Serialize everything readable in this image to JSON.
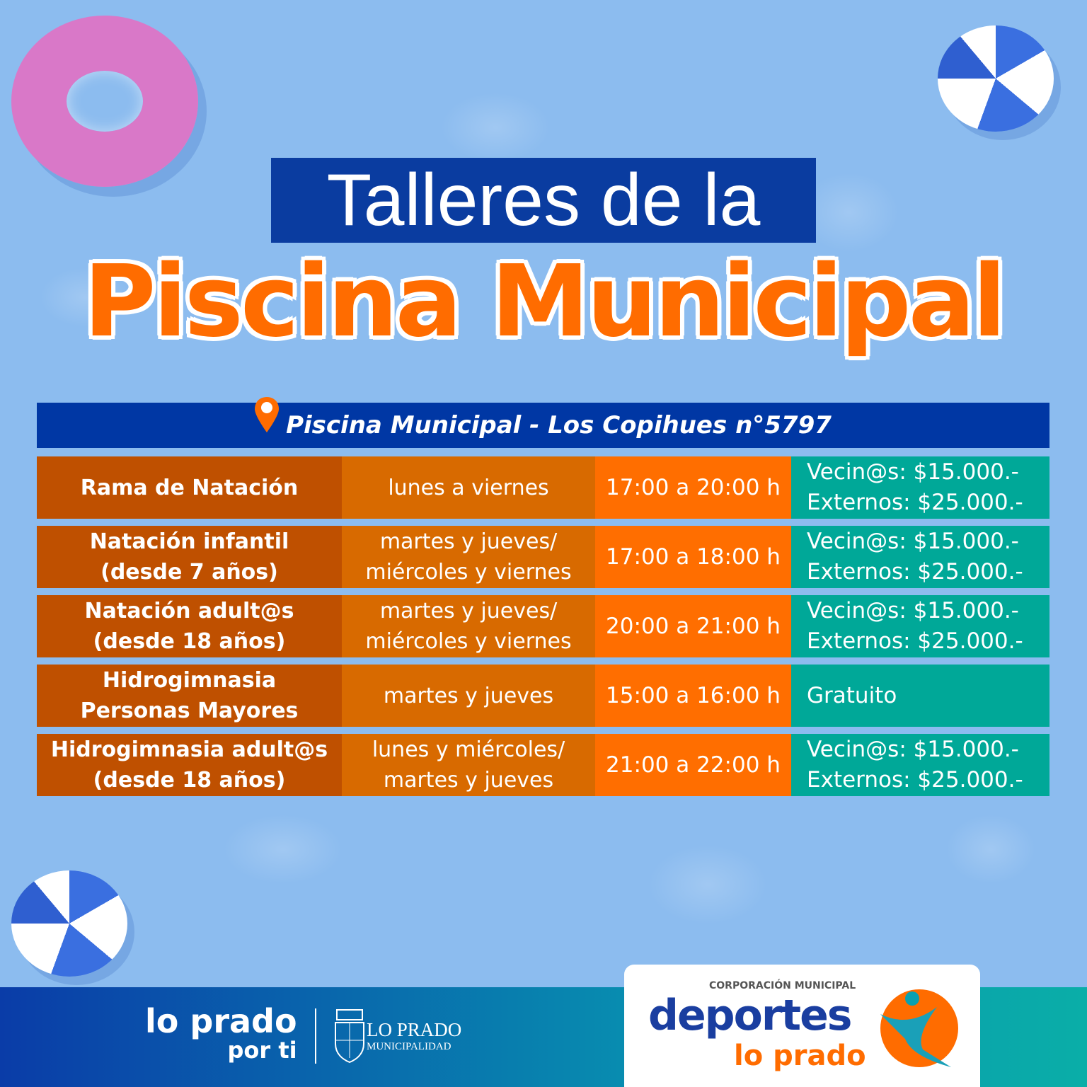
{
  "title": {
    "line1": "Talleres de la",
    "line2": "Piscina Municipal"
  },
  "location": {
    "icon": "map-pin-icon",
    "text": "Piscina Municipal - Los Copihues n°5797"
  },
  "colors": {
    "header": "#0037a4",
    "col1": "#bf5000",
    "col2": "#d86a00",
    "col3": "#ff6e00",
    "col4": "#00a898",
    "title_orange": "#ff6c00"
  },
  "rows": [
    {
      "name": [
        "Rama de Natación"
      ],
      "days": [
        "lunes a viernes"
      ],
      "time": "17:00 a 20:00 h",
      "price": [
        "Vecin@s: $15.000.-",
        "Externos: $25.000.-"
      ]
    },
    {
      "name": [
        "Natación infantil",
        "(desde 7 años)"
      ],
      "days": [
        "martes y jueves/",
        "miércoles y viernes"
      ],
      "time": "17:00 a 18:00 h",
      "price": [
        "Vecin@s: $15.000.-",
        "Externos: $25.000.-"
      ]
    },
    {
      "name": [
        "Natación adult@s",
        "(desde 18 años)"
      ],
      "days": [
        "martes y jueves/",
        "miércoles y viernes"
      ],
      "time": "20:00 a 21:00 h",
      "price": [
        "Vecin@s: $15.000.-",
        "Externos: $25.000.-"
      ]
    },
    {
      "name": [
        "Hidrogimnasia",
        "Personas Mayores"
      ],
      "days": [
        "martes y jueves"
      ],
      "time": "15:00 a 16:00 h",
      "price": [
        "Gratuito"
      ]
    },
    {
      "name": [
        "Hidrogimnasia adult@s",
        "(desde 18 años)"
      ],
      "days": [
        "lunes y miércoles/",
        "martes y jueves"
      ],
      "time": "21:00 a 22:00 h",
      "price": [
        "Vecin@s: $15.000.-",
        "Externos: $25.000.-"
      ]
    }
  ],
  "footer": {
    "brand_line1": "lo prado",
    "brand_line2": "por ti",
    "muni_name": "LO PRADO",
    "muni_sub": "MUNICIPALIDAD",
    "corp": "CORPORACIÓN MUNICIPAL",
    "deportes": "deportes",
    "lo_prado": "lo prado"
  }
}
